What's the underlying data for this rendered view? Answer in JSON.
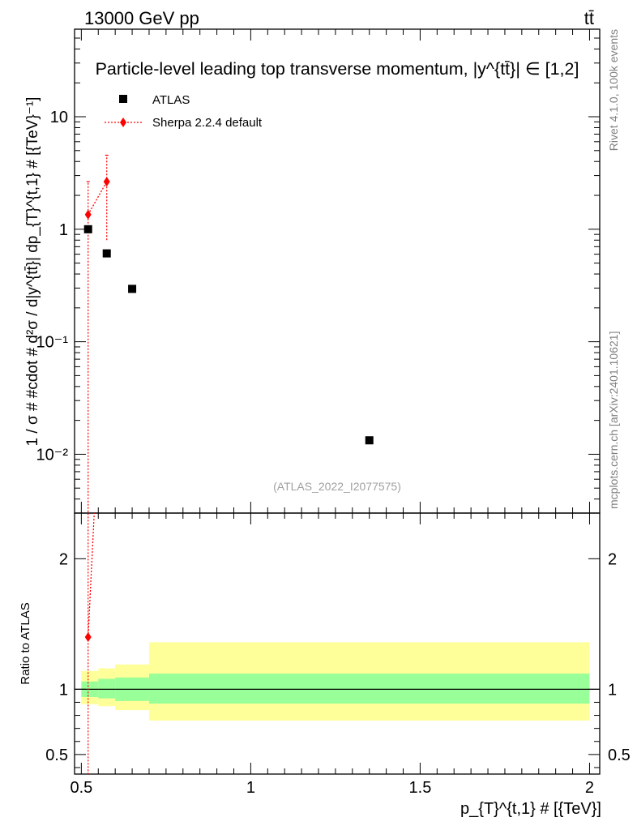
{
  "header": {
    "energy_label": "13000 GeV pp",
    "process_label": "tt̄"
  },
  "side_labels": {
    "rivet": "Rivet 4.1.0,  100k events",
    "mcplots": "mcplots.cern.ch [arXiv:2401.10621]"
  },
  "chart_data": [
    {
      "type": "scatter",
      "panel": "main",
      "title": "Particle-level leading top transverse momentum, |y^{tt̄}| ∈ [1,2]",
      "watermark": "(ATLAS_2022_I2077575)",
      "ylabel": "1 / σ # #cdot # d²σ / d|y^{tt̄}| dp_{T}^{t,1} # [{TeV}⁻¹]",
      "yscale": "log",
      "ylim": [
        0.003,
        60
      ],
      "xlim": [
        0.48,
        2.03
      ],
      "y_ticks": [
        {
          "value": 10,
          "label": "10"
        },
        {
          "value": 1,
          "label": "1"
        },
        {
          "value": 0.1,
          "label": "10⁻¹"
        },
        {
          "value": 0.01,
          "label": "10⁻²"
        }
      ],
      "legend": [
        {
          "label": "ATLAS",
          "marker": "square",
          "color": "#000000"
        },
        {
          "label": "Sherpa 2.2.4 default",
          "marker": "diamond",
          "color": "#ff0000"
        }
      ],
      "series": [
        {
          "name": "ATLAS",
          "x": [
            0.52,
            0.575,
            0.65,
            1.35
          ],
          "y": [
            1.0,
            0.61,
            0.295,
            0.0133
          ]
        },
        {
          "name": "Sherpa 2.2.4 default",
          "x": [
            0.52,
            0.575
          ],
          "y": [
            1.35,
            2.65
          ],
          "y_err_low": [
            1.35,
            1.85
          ],
          "y_err_high": [
            1.3,
            1.9
          ]
        }
      ]
    },
    {
      "type": "scatter",
      "panel": "ratio",
      "ylabel": "Ratio to ATLAS",
      "xlabel": "p_{T}^{t,1} # [{TeV}]",
      "ylim": [
        0.35,
        2.35
      ],
      "xlim": [
        0.48,
        2.03
      ],
      "x_ticks": [
        {
          "value": 0.5,
          "label": "0.5"
        },
        {
          "value": 1,
          "label": "1"
        },
        {
          "value": 1.5,
          "label": "1.5"
        },
        {
          "value": 2,
          "label": "2"
        }
      ],
      "y_ticks": [
        {
          "value": 0.5,
          "label": "0.5"
        },
        {
          "value": 1,
          "label": "1"
        },
        {
          "value": 2,
          "label": "2"
        }
      ],
      "bands": [
        {
          "x0": 0.5,
          "x1": 0.55,
          "inner": [
            0.94,
            1.06
          ],
          "outer": [
            0.885,
            1.14
          ]
        },
        {
          "x0": 0.55,
          "x1": 0.6,
          "inner": [
            0.93,
            1.08
          ],
          "outer": [
            0.87,
            1.16
          ]
        },
        {
          "x0": 0.6,
          "x1": 0.7,
          "inner": [
            0.91,
            1.09
          ],
          "outer": [
            0.84,
            1.19
          ]
        },
        {
          "x0": 0.7,
          "x1": 2.0,
          "inner": [
            0.89,
            1.12
          ],
          "outer": [
            0.76,
            1.36
          ]
        }
      ],
      "series": [
        {
          "name": "Sherpa 2.2.4 default",
          "x": [
            0.52
          ],
          "y": [
            1.4
          ],
          "y_err_low": [
            1.4
          ],
          "y_err_high": [
            1.3
          ],
          "continuation_to": {
            "x": 0.575,
            "y": 4.3
          }
        }
      ],
      "reference_line": 1
    }
  ]
}
